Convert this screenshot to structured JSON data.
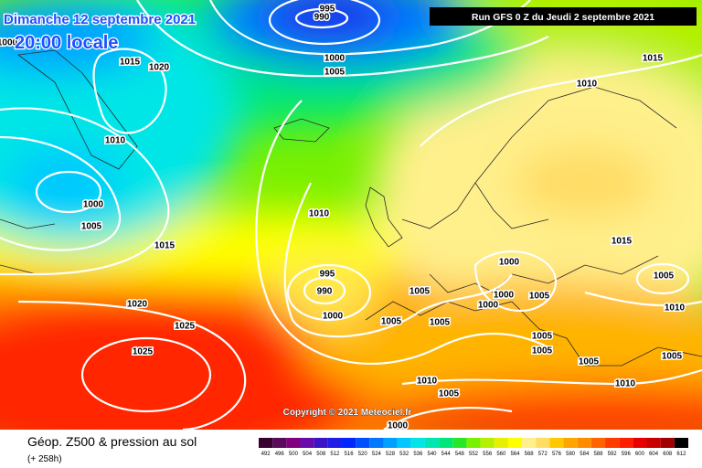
{
  "header": {
    "date": "Dimanche 12 septembre 2021",
    "local_time": "20:00 locale",
    "run": "Run GFS 0 Z du Jeudi 2 septembre 2021"
  },
  "footer": {
    "copyright": "Copyright © 2021 Meteociel.fr",
    "title": "Géop. Z500 & pression au sol",
    "lead": "(+ 258h)"
  },
  "isobar_labels": [
    995,
    990,
    1000,
    1005,
    1015,
    1020,
    1010,
    1000,
    1005,
    1015,
    1010,
    995,
    990,
    1000,
    1005,
    1005,
    1005,
    1000,
    1000,
    1005,
    1000,
    1005,
    1005,
    1005,
    1010,
    1015,
    1015,
    1010,
    1005,
    1005,
    1010,
    1010,
    1005,
    1000,
    1020,
    1025,
    1025,
    1000
  ],
  "legend": {
    "items": [
      {
        "label": 492,
        "color": "#3a0030"
      },
      {
        "label": 496,
        "color": "#5a0a5a"
      },
      {
        "label": 500,
        "color": "#800080"
      },
      {
        "label": 504,
        "color": "#6a0aaa"
      },
      {
        "label": 508,
        "color": "#3c14c8"
      },
      {
        "label": 512,
        "color": "#1e1ee6"
      },
      {
        "label": 516,
        "color": "#0028ff"
      },
      {
        "label": 520,
        "color": "#0050ff"
      },
      {
        "label": 524,
        "color": "#0078ff"
      },
      {
        "label": 528,
        "color": "#00a0ff"
      },
      {
        "label": 532,
        "color": "#00c8ff"
      },
      {
        "label": 536,
        "color": "#00e6e6"
      },
      {
        "label": 540,
        "color": "#00e6b4"
      },
      {
        "label": 544,
        "color": "#00e678"
      },
      {
        "label": 548,
        "color": "#28e628"
      },
      {
        "label": 552,
        "color": "#78f000"
      },
      {
        "label": 556,
        "color": "#b4f000"
      },
      {
        "label": 560,
        "color": "#e6f000"
      },
      {
        "label": 564,
        "color": "#ffff00"
      },
      {
        "label": 568,
        "color": "#fff08c"
      },
      {
        "label": 572,
        "color": "#ffdc64"
      },
      {
        "label": 576,
        "color": "#ffc800"
      },
      {
        "label": 580,
        "color": "#ffa500"
      },
      {
        "label": 584,
        "color": "#ff8c00"
      },
      {
        "label": 588,
        "color": "#ff6400"
      },
      {
        "label": 592,
        "color": "#ff3c00"
      },
      {
        "label": 596,
        "color": "#ff1e00"
      },
      {
        "label": 600,
        "color": "#e60000"
      },
      {
        "label": 604,
        "color": "#c80000"
      },
      {
        "label": 608,
        "color": "#a00000"
      },
      {
        "label": 612,
        "color": "#000000"
      }
    ]
  }
}
